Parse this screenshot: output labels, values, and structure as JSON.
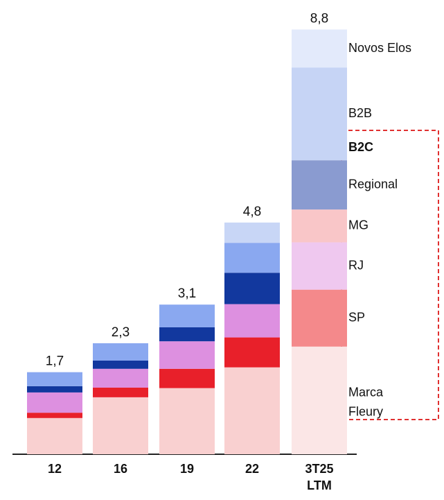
{
  "chart_data": {
    "type": "stacked_bar",
    "categories": [
      "12",
      "16",
      "19",
      "22",
      "3T25 LTM"
    ],
    "totals": [
      1.7,
      2.3,
      3.1,
      4.8,
      8.8
    ],
    "total_labels": [
      "1,7",
      "2,3",
      "3,1",
      "4,8",
      "8,8"
    ],
    "group_label": "B2C",
    "series": [
      {
        "name": "Marca Fleury",
        "color": "#f9d0d0",
        "colors": [
          "#f9d0d0",
          "#f9d0d0",
          "#f9d0d0",
          "#f9d0d0",
          "#fbe6e6"
        ],
        "values": [
          0.75,
          1.18,
          1.37,
          1.8,
          2.23
        ]
      },
      {
        "name": "SP",
        "color": "#e8202a",
        "colors": [
          "#e8202a",
          "#e8202a",
          "#e8202a",
          "#e8202a",
          "#f4898b"
        ],
        "values": [
          0.11,
          0.2,
          0.4,
          0.62,
          1.18
        ]
      },
      {
        "name": "RJ",
        "color": "#dd90e0",
        "colors": [
          "#dd90e0",
          "#dd90e0",
          "#dd90e0",
          "#dd90e0",
          "#efc8ef"
        ],
        "values": [
          0.42,
          0.39,
          0.57,
          0.69,
          0.98
        ]
      },
      {
        "name": "MG",
        "color": "#f9c6c8",
        "colors": [
          "#f9c6c8",
          "#f9c6c8",
          "#f9c6c8",
          "#f9c6c8",
          "#f9c6c8"
        ],
        "values": [
          0,
          0,
          0,
          0,
          0.68
        ]
      },
      {
        "name": "Regional",
        "color": "#12389e",
        "colors": [
          "#12389e",
          "#12389e",
          "#12389e",
          "#12389e",
          "#8a9bd0"
        ],
        "values": [
          0.13,
          0.17,
          0.29,
          0.65,
          1.02
        ]
      },
      {
        "name": "B2B",
        "color": "#8aa8f0",
        "colors": [
          "#8aa8f0",
          "#8aa8f0",
          "#8aa8f0",
          "#8aa8f0",
          "#c6d4f5"
        ],
        "values": [
          0.29,
          0.36,
          0.47,
          0.62,
          1.92
        ]
      },
      {
        "name": "Novos Elos",
        "color": "#c8d6f6",
        "colors": [
          "#c8d6f6",
          "#c8d6f6",
          "#c8d6f6",
          "#c8d6f6",
          "#e3eafb"
        ],
        "values": [
          0,
          0,
          0,
          0.42,
          0.79
        ]
      }
    ]
  }
}
